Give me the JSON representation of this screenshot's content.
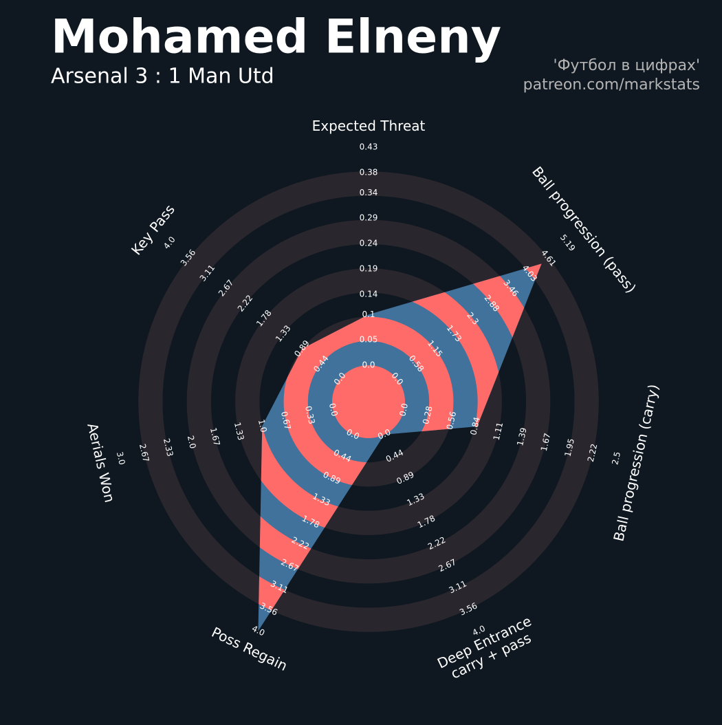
{
  "chart_data": {
    "type": "radar",
    "title": "Mohamed Elneny",
    "subtitle": "Arsenal 3 : 1 Man Utd",
    "credits": [
      "'Футбол в цифрах'",
      "patreon.com/markstats"
    ],
    "params": [
      [
        "Expected Threat"
      ],
      [
        "Ball progression (pass)"
      ],
      [
        "Ball progression (carry)"
      ],
      [
        "Deep Entrance",
        "carry + pass"
      ],
      [
        "Poss Regain"
      ],
      [
        "Aerials Won"
      ],
      [
        "Key Pass"
      ]
    ],
    "values": [
      0.1,
      4.4,
      0.86,
      0,
      4.0,
      1.0,
      0.89
    ],
    "ranges": [
      [
        0,
        0.43
      ],
      [
        0,
        5.19
      ],
      [
        0,
        2.5
      ],
      [
        0,
        4
      ],
      [
        0,
        4
      ],
      [
        0,
        3
      ],
      [
        0,
        4
      ]
    ],
    "ticks": [
      [
        {
          "value": 0,
          "label": "0.0"
        },
        0.05,
        0.1,
        0.14,
        0.19,
        0.24,
        0.29,
        0.34,
        0.38,
        0.43
      ],
      [
        {
          "value": 0,
          "label": "0.0"
        },
        0.58,
        1.15,
        1.73,
        2.3,
        2.88,
        3.46,
        4.03,
        4.61,
        5.19
      ],
      [
        {
          "value": 0,
          "label": "0.0"
        },
        0.28,
        0.56,
        0.84,
        1.11,
        1.39,
        1.67,
        1.95,
        2.22,
        2.5
      ],
      [
        {
          "value": 0,
          "label": "0.0"
        },
        0.44,
        0.89,
        1.33,
        1.78,
        2.22,
        2.67,
        3.11,
        3.56,
        {
          "value": 4,
          "label": "4.0"
        }
      ],
      [
        {
          "value": 0,
          "label": "0.0"
        },
        0.44,
        0.89,
        1.33,
        1.78,
        2.22,
        2.67,
        3.11,
        3.56,
        {
          "value": 4,
          "label": "4.0"
        }
      ],
      [
        {
          "value": 0,
          "label": "0.0"
        },
        0.33,
        0.67,
        {
          "value": 1,
          "label": "1.0"
        },
        1.33,
        1.67,
        {
          "value": 2,
          "label": "2.0"
        },
        2.33,
        2.67,
        {
          "value": 3,
          "label": "3.0"
        }
      ],
      [
        {
          "value": 0,
          "label": "0.0"
        },
        0.44,
        0.89,
        1.33,
        1.78,
        2.22,
        2.67,
        3.11,
        3.56,
        {
          "value": 4,
          "label": "4.0"
        }
      ]
    ],
    "polygon_color": "#41729c",
    "ring_color": "#2a262d",
    "highlight_color": "#ff6b68"
  }
}
